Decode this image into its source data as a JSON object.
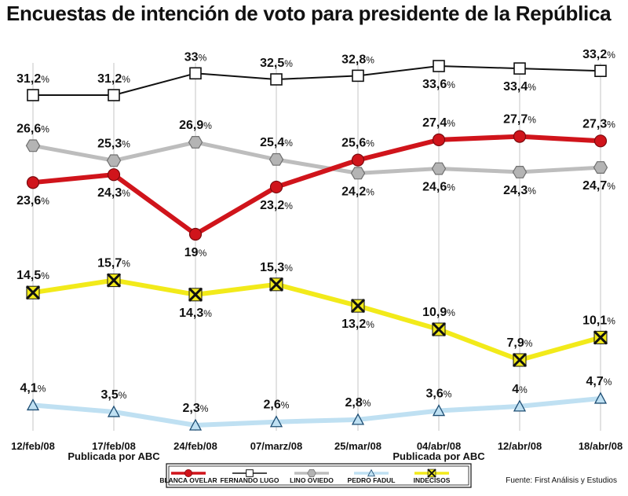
{
  "chart_data": {
    "type": "line",
    "title": "Encuestas de intención de voto para presidente de la República",
    "categories": [
      "12/feb/08",
      "17/feb/08",
      "24/feb/08",
      "07/marz/08",
      "25/mar/08",
      "04/abr/08",
      "12/abr/08",
      "18/abr/08"
    ],
    "notes": [
      "Publicada por ABC",
      "Publicada por ABC"
    ],
    "source": "Fuente: First Análisis y Estudios",
    "value_unit": "%",
    "series": [
      {
        "name": "FERNANDO LUGO",
        "values": [
          31.2,
          31.2,
          33,
          32.5,
          32.8,
          33.6,
          33.4,
          33.2
        ],
        "labels": [
          "31,2",
          "31,2",
          "33",
          "32,5",
          "32,8",
          "33,6",
          "33,4",
          "33,2"
        ],
        "color": "#111111",
        "marker": "square"
      },
      {
        "name": "LINO OVIEDO",
        "values": [
          26.6,
          25.3,
          26.9,
          25.4,
          24.2,
          24.6,
          24.3,
          24.7
        ],
        "labels": [
          "26,6",
          "25,3",
          "26,9",
          "25,4",
          "24,2",
          "24,6",
          "24,3",
          "24,7"
        ],
        "color": "#bdbdbd",
        "marker": "hexagon"
      },
      {
        "name": "BLANCA OVELAR",
        "values": [
          23.6,
          24.3,
          19,
          23.2,
          25.6,
          27.4,
          27.7,
          27.3
        ],
        "labels": [
          "23,6",
          "24,3",
          "19",
          "23,2",
          "25,6",
          "27,4",
          "27,7",
          "27,3"
        ],
        "color": "#d0141b",
        "marker": "circle"
      },
      {
        "name": "INDECISOS",
        "values": [
          14.5,
          15.7,
          14.3,
          15.3,
          13.2,
          10.9,
          7.9,
          10.1
        ],
        "labels": [
          "14,5",
          "15,7",
          "14,3",
          "15,3",
          "13,2",
          "10,9",
          "7,9",
          "10,1"
        ],
        "color": "#f2ea1a",
        "marker": "x-box"
      },
      {
        "name": "PEDRO FADUL",
        "values": [
          4.1,
          3.5,
          2.3,
          2.6,
          2.8,
          3.6,
          4,
          4.7
        ],
        "labels": [
          "4,1",
          "3,5",
          "2,3",
          "2,6",
          "2,8",
          "3,6",
          "4",
          "4,7"
        ],
        "color": "#bfe0f2",
        "marker": "triangle"
      }
    ],
    "legend_order": [
      "BLANCA OVELAR",
      "FERNANDO LUGO",
      "LINO OVIEDO",
      "PEDRO FADUL",
      "INDECISOS"
    ],
    "legend_position": "bottom-center"
  }
}
